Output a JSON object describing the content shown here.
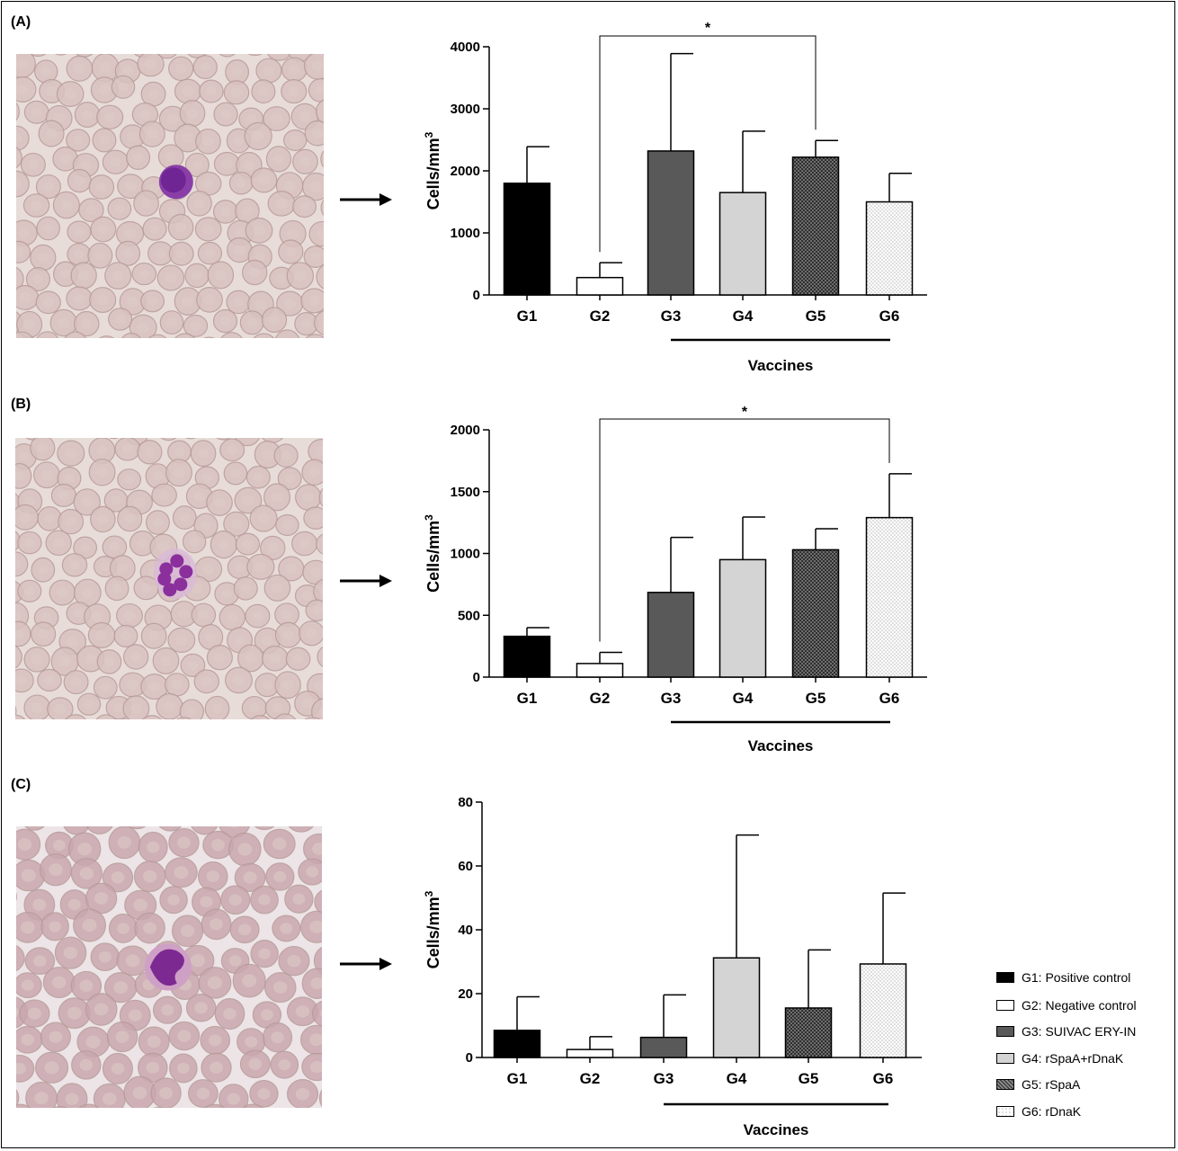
{
  "panels": [
    {
      "label": "(A)",
      "cell_type": "lymphocyte"
    },
    {
      "label": "(B)",
      "cell_type": "neutrophil"
    },
    {
      "label": "(C)",
      "cell_type": "monocyte"
    }
  ],
  "patterns": {
    "G1": {
      "fill": "#000000",
      "pattern": "solid"
    },
    "G2": {
      "fill": "#ffffff",
      "pattern": "solid"
    },
    "G3": {
      "fill": "#595959",
      "pattern": "solid"
    },
    "G4": {
      "fill": "#d4d4d4",
      "pattern": "solid"
    },
    "G5": {
      "fill": "#4a4a4a",
      "pattern": "crosshatch"
    },
    "G6": {
      "fill": "#ffffff",
      "pattern": "dots"
    }
  },
  "legend": [
    {
      "key": "G1",
      "label": "G1: Positive control"
    },
    {
      "key": "G2",
      "label": "G2: Negative control"
    },
    {
      "key": "G3",
      "label": "G3: SUIVAC ERY-IN"
    },
    {
      "key": "G4",
      "label": "G4: rSpaA+rDnaK"
    },
    {
      "key": "G5",
      "label": "G5: rSpaA"
    },
    {
      "key": "G6",
      "label": "G6: rDnaK"
    }
  ],
  "chart_data": [
    {
      "type": "bar",
      "categories": [
        "G1",
        "G2",
        "G3",
        "G4",
        "G5",
        "G6"
      ],
      "values": [
        1800,
        280,
        2320,
        1650,
        2220,
        1500
      ],
      "errors": [
        590,
        240,
        1570,
        990,
        270,
        460
      ],
      "ylabel": "Cells/mm",
      "ylabel_sup": "3",
      "ylim": [
        0,
        4000
      ],
      "yticks": [
        0,
        1000,
        2000,
        3000,
        4000
      ],
      "group_label": "Vaccines",
      "significance": {
        "from": "G2",
        "to": "G5",
        "label": "*"
      }
    },
    {
      "type": "bar",
      "categories": [
        "G1",
        "G2",
        "G3",
        "G4",
        "G5",
        "G6"
      ],
      "values": [
        330,
        110,
        685,
        950,
        1030,
        1290
      ],
      "errors": [
        70,
        90,
        445,
        345,
        170,
        355
      ],
      "ylabel": "Cells/mm",
      "ylabel_sup": "3",
      "ylim": [
        0,
        2000
      ],
      "yticks": [
        0,
        500,
        1000,
        1500,
        2000
      ],
      "group_label": "Vaccines",
      "significance": {
        "from": "G2",
        "to": "G6",
        "label": "*"
      }
    },
    {
      "type": "bar",
      "categories": [
        "G1",
        "G2",
        "G3",
        "G4",
        "G5",
        "G6"
      ],
      "values": [
        8.5,
        2.5,
        6.3,
        31.2,
        15.5,
        29.3
      ],
      "errors": [
        10.5,
        4.0,
        13.3,
        38.5,
        18.2,
        22.2
      ],
      "ylabel": "Cells/mm",
      "ylabel_sup": "3",
      "ylim": [
        0,
        80
      ],
      "yticks": [
        0,
        20,
        40,
        60,
        80
      ],
      "group_label": "Vaccines",
      "significance": null
    }
  ]
}
